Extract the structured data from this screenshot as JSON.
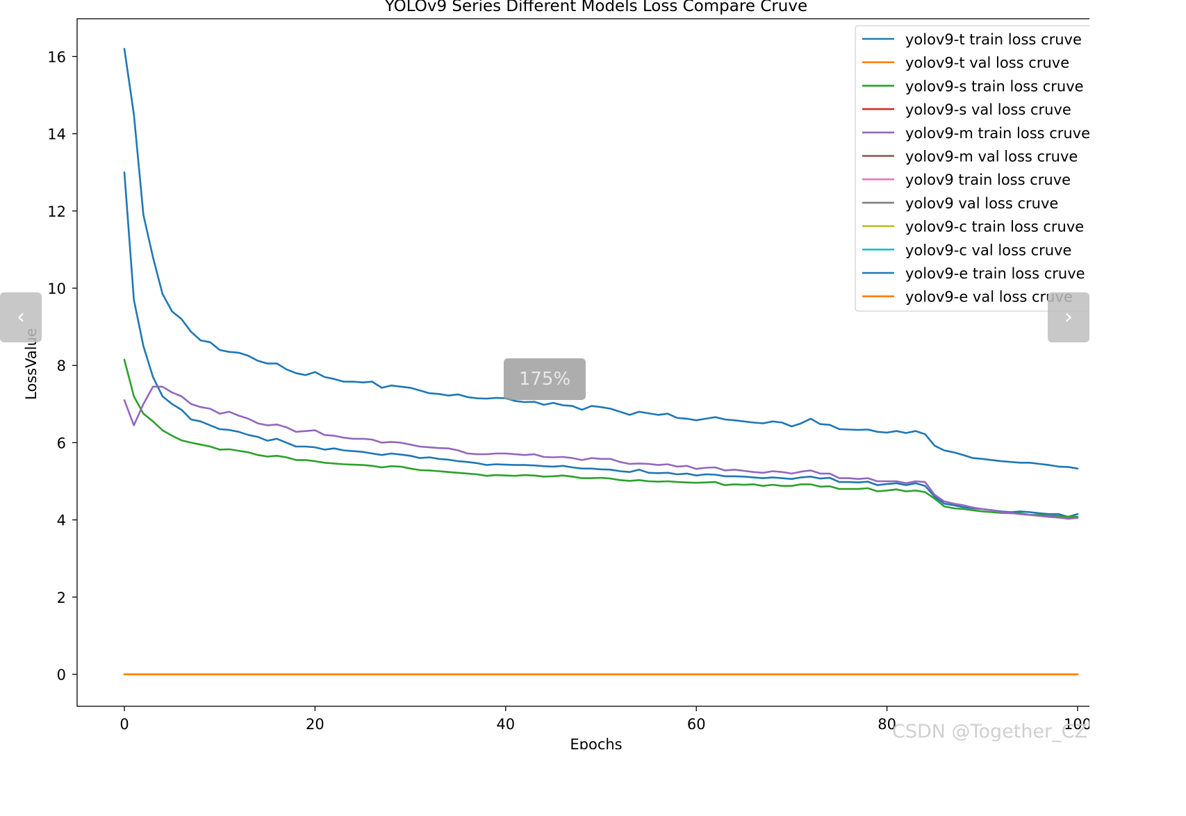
{
  "viewer": {
    "zoom_label": "175%",
    "prev_icon": "chevron-left-icon",
    "next_icon": "chevron-right-icon",
    "prev_glyph": "‹",
    "next_glyph": "›"
  },
  "watermark": "CSDN @Together_CZ",
  "chart_data": {
    "type": "line",
    "title": "YOLOv9 Series Different Models Loss Compare Cruve",
    "xlabel": "Epochs",
    "ylabel": "LossValue",
    "xlim": [
      -5,
      100
    ],
    "ylim": [
      -0.8,
      16.9
    ],
    "xticks": [
      0,
      20,
      40,
      60,
      80,
      100
    ],
    "yticks": [
      0,
      2,
      4,
      6,
      8,
      10,
      12,
      14,
      16
    ],
    "grid": false,
    "legend_position": "top-right",
    "series": [
      {
        "name": "yolov9-t train loss cruve",
        "color": "#1f77b4",
        "x_start": 0,
        "values": [
          13.0,
          9.7,
          8.5,
          7.7,
          7.2,
          7.0,
          6.85,
          6.6,
          6.55,
          6.45,
          6.35,
          6.33,
          6.28,
          6.2,
          6.15,
          6.05,
          6.1,
          6.0,
          5.9,
          5.9,
          5.88,
          5.82,
          5.85,
          5.8,
          5.78,
          5.76,
          5.72,
          5.68,
          5.72,
          5.69,
          5.66,
          5.6,
          5.62,
          5.58,
          5.56,
          5.52,
          5.5,
          5.47,
          5.42,
          5.44,
          5.43,
          5.42,
          5.42,
          5.41,
          5.39,
          5.38,
          5.4,
          5.36,
          5.33,
          5.33,
          5.31,
          5.3,
          5.26,
          5.24,
          5.3,
          5.22,
          5.21,
          5.22,
          5.18,
          5.2,
          5.15,
          5.18,
          5.17,
          5.13,
          5.13,
          5.12,
          5.1,
          5.08,
          5.1,
          5.08,
          5.06,
          5.1,
          5.12,
          5.07,
          5.09,
          4.98,
          4.98,
          4.97,
          4.99,
          4.9,
          4.93,
          4.95,
          4.9,
          4.95,
          4.88,
          4.6,
          4.42,
          4.38,
          4.33,
          4.3,
          4.28,
          4.25,
          4.22,
          4.2,
          4.22,
          4.2,
          4.17,
          4.15,
          4.15,
          4.08,
          4.15
        ]
      },
      {
        "name": "yolov9-t val loss cruve",
        "color": "#ff7f0e",
        "x_start": 0,
        "values": [
          0,
          0,
          0,
          0,
          0,
          0,
          0,
          0,
          0,
          0,
          0,
          0,
          0,
          0,
          0,
          0,
          0,
          0,
          0,
          0,
          0,
          0,
          0,
          0,
          0,
          0,
          0,
          0,
          0,
          0,
          0,
          0,
          0,
          0,
          0,
          0,
          0,
          0,
          0,
          0,
          0,
          0,
          0,
          0,
          0,
          0,
          0,
          0,
          0,
          0,
          0,
          0,
          0,
          0,
          0,
          0,
          0,
          0,
          0,
          0,
          0,
          0,
          0,
          0,
          0,
          0,
          0,
          0,
          0,
          0,
          0,
          0,
          0,
          0,
          0,
          0,
          0,
          0,
          0,
          0,
          0,
          0,
          0,
          0,
          0,
          0,
          0,
          0,
          0,
          0,
          0,
          0,
          0,
          0,
          0,
          0,
          0,
          0,
          0,
          0,
          0
        ]
      },
      {
        "name": "yolov9-s train loss cruve",
        "color": "#2ca02c",
        "x_start": 0,
        "values": [
          8.15,
          7.2,
          6.75,
          6.55,
          6.32,
          6.18,
          6.06,
          6.0,
          5.95,
          5.9,
          5.82,
          5.83,
          5.79,
          5.75,
          5.68,
          5.64,
          5.66,
          5.62,
          5.55,
          5.55,
          5.52,
          5.48,
          5.46,
          5.44,
          5.43,
          5.42,
          5.4,
          5.36,
          5.39,
          5.38,
          5.33,
          5.29,
          5.28,
          5.26,
          5.24,
          5.22,
          5.2,
          5.18,
          5.14,
          5.16,
          5.15,
          5.14,
          5.16,
          5.15,
          5.12,
          5.13,
          5.15,
          5.12,
          5.08,
          5.08,
          5.09,
          5.07,
          5.03,
          5.01,
          5.03,
          5.0,
          4.99,
          5.0,
          4.98,
          4.97,
          4.96,
          4.97,
          4.98,
          4.9,
          4.92,
          4.91,
          4.92,
          4.88,
          4.91,
          4.88,
          4.88,
          4.92,
          4.92,
          4.86,
          4.87,
          4.8,
          4.8,
          4.8,
          4.82,
          4.74,
          4.76,
          4.79,
          4.74,
          4.76,
          4.72,
          4.55,
          4.35,
          4.3,
          4.28,
          4.25,
          4.22,
          4.2,
          4.18,
          4.17,
          4.17,
          4.13,
          4.13,
          4.1,
          4.1,
          4.08,
          4.08
        ]
      },
      {
        "name": "yolov9-s val loss cruve",
        "color": "#d62728",
        "x_start": 0,
        "values": []
      },
      {
        "name": "yolov9-m train loss cruve",
        "color": "#9467bd",
        "x_start": 0,
        "values": [
          7.1,
          6.45,
          7.0,
          7.45,
          7.45,
          7.3,
          7.2,
          7.0,
          6.92,
          6.88,
          6.75,
          6.8,
          6.7,
          6.62,
          6.5,
          6.45,
          6.47,
          6.4,
          6.28,
          6.3,
          6.32,
          6.2,
          6.18,
          6.13,
          6.1,
          6.1,
          6.08,
          6.0,
          6.02,
          6.0,
          5.95,
          5.9,
          5.88,
          5.86,
          5.85,
          5.8,
          5.72,
          5.7,
          5.7,
          5.72,
          5.72,
          5.7,
          5.68,
          5.7,
          5.63,
          5.62,
          5.63,
          5.6,
          5.55,
          5.6,
          5.58,
          5.58,
          5.5,
          5.45,
          5.46,
          5.45,
          5.42,
          5.44,
          5.38,
          5.4,
          5.32,
          5.35,
          5.36,
          5.28,
          5.3,
          5.27,
          5.24,
          5.22,
          5.26,
          5.24,
          5.2,
          5.25,
          5.28,
          5.2,
          5.2,
          5.08,
          5.08,
          5.06,
          5.08,
          5.0,
          5.0,
          5.0,
          4.95,
          5.0,
          4.98,
          4.65,
          4.48,
          4.42,
          4.38,
          4.32,
          4.28,
          4.25,
          4.2,
          4.18,
          4.15,
          4.13,
          4.1,
          4.08,
          4.06,
          4.03,
          4.05
        ]
      },
      {
        "name": "yolov9-m val loss cruve",
        "color": "#8c564b",
        "x_start": 0,
        "values": []
      },
      {
        "name": "yolov9 train loss cruve",
        "color": "#e377c2",
        "x_start": 0,
        "values": []
      },
      {
        "name": "yolov9 val loss cruve",
        "color": "#7f7f7f",
        "x_start": 0,
        "values": []
      },
      {
        "name": "yolov9-c train loss cruve",
        "color": "#bcbd22",
        "x_start": 0,
        "values": []
      },
      {
        "name": "yolov9-c val loss cruve",
        "color": "#17becf",
        "x_start": 0,
        "values": []
      },
      {
        "name": "yolov9-e train loss cruve",
        "color": "#1f77b4",
        "x_start": 0,
        "values": [
          16.2,
          14.5,
          11.9,
          10.8,
          9.85,
          9.4,
          9.2,
          8.87,
          8.65,
          8.6,
          8.4,
          8.35,
          8.33,
          8.25,
          8.12,
          8.05,
          8.05,
          7.9,
          7.8,
          7.75,
          7.83,
          7.7,
          7.65,
          7.58,
          7.58,
          7.56,
          7.58,
          7.42,
          7.48,
          7.45,
          7.42,
          7.35,
          7.28,
          7.26,
          7.22,
          7.25,
          7.18,
          7.15,
          7.14,
          7.16,
          7.15,
          7.08,
          7.05,
          7.06,
          6.98,
          7.03,
          6.97,
          6.95,
          6.85,
          6.95,
          6.92,
          6.88,
          6.8,
          6.72,
          6.8,
          6.76,
          6.72,
          6.75,
          6.64,
          6.62,
          6.58,
          6.62,
          6.66,
          6.6,
          6.58,
          6.55,
          6.52,
          6.5,
          6.55,
          6.52,
          6.42,
          6.5,
          6.62,
          6.48,
          6.46,
          6.35,
          6.34,
          6.33,
          6.34,
          6.28,
          6.26,
          6.3,
          6.25,
          6.3,
          6.22,
          5.92,
          5.8,
          5.75,
          5.68,
          5.6,
          5.58,
          5.55,
          5.52,
          5.5,
          5.48,
          5.48,
          5.45,
          5.42,
          5.38,
          5.37,
          5.33
        ]
      },
      {
        "name": "yolov9-e val loss cruve",
        "color": "#ff7f0e",
        "x_start": 0,
        "values": [
          0,
          0,
          0,
          0,
          0,
          0,
          0,
          0,
          0,
          0,
          0,
          0,
          0,
          0,
          0,
          0,
          0,
          0,
          0,
          0,
          0,
          0,
          0,
          0,
          0,
          0,
          0,
          0,
          0,
          0,
          0,
          0,
          0,
          0,
          0,
          0,
          0,
          0,
          0,
          0,
          0,
          0,
          0,
          0,
          0,
          0,
          0,
          0,
          0,
          0,
          0,
          0,
          0,
          0,
          0,
          0,
          0,
          0,
          0,
          0,
          0,
          0,
          0,
          0,
          0,
          0,
          0,
          0,
          0,
          0,
          0,
          0,
          0,
          0,
          0,
          0,
          0,
          0,
          0,
          0,
          0,
          0,
          0,
          0,
          0,
          0,
          0,
          0,
          0,
          0,
          0,
          0,
          0,
          0,
          0,
          0,
          0,
          0,
          0,
          0,
          0
        ]
      }
    ]
  }
}
